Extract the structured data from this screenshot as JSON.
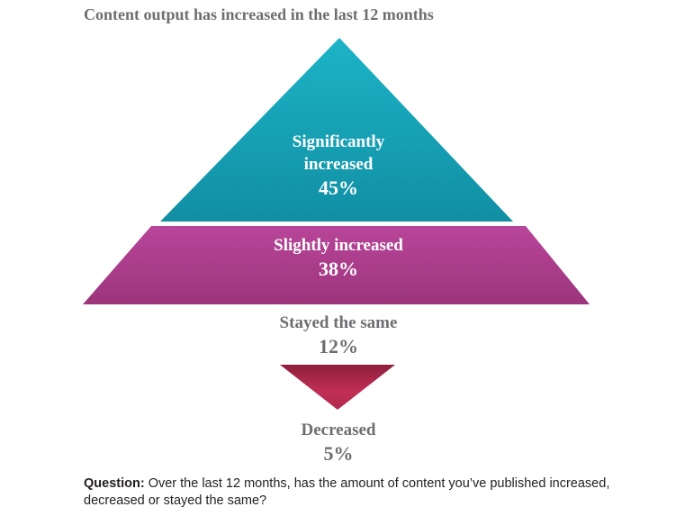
{
  "chart_data": {
    "type": "pyramid",
    "title": "Content output has increased in the last 12 months",
    "categories": [
      "Significantly increased",
      "Slightly increased",
      "Stayed the same",
      "Decreased"
    ],
    "values": [
      45,
      38,
      12,
      5
    ],
    "value_labels": [
      "45%",
      "38%",
      "12%",
      "5%"
    ],
    "colors": [
      "#17a9be",
      "#ae3f8d",
      null,
      "#b02a4d"
    ],
    "footnote": {
      "label": "Question:",
      "text": "Over the last 12 months, has the amount of content you’ve published increased, decreased or stayed the same?"
    }
  }
}
